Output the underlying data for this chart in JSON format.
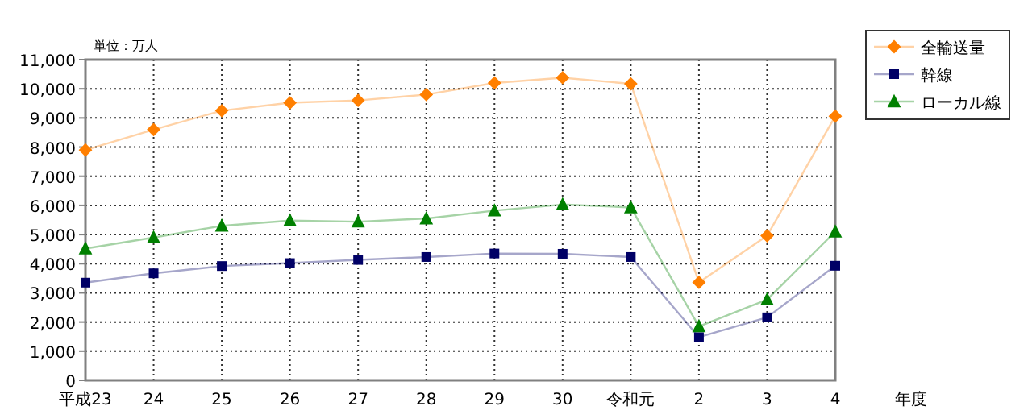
{
  "chart_data": {
    "type": "line",
    "categories": [
      "平成23",
      "24",
      "25",
      "26",
      "27",
      "28",
      "29",
      "30",
      "令和元",
      "2",
      "3",
      "4"
    ],
    "series": [
      {
        "name": "全輸送量",
        "color": "#ff7f00",
        "marker": "diamond",
        "values": [
          7900,
          8600,
          9250,
          9520,
          9600,
          9800,
          10200,
          10380,
          10170,
          3360,
          4960,
          9060
        ]
      },
      {
        "name": "幹線",
        "color": "#000066",
        "marker": "square",
        "values": [
          3350,
          3670,
          3920,
          4020,
          4130,
          4230,
          4350,
          4340,
          4230,
          1480,
          2160,
          3930
        ]
      },
      {
        "name": "ローカル線",
        "color": "#008000",
        "marker": "triangle",
        "values": [
          4520,
          4900,
          5300,
          5480,
          5440,
          5550,
          5820,
          6030,
          5930,
          1850,
          2770,
          5100
        ]
      }
    ],
    "ylim": [
      0,
      11000
    ],
    "yticks": [
      {
        "value": 0,
        "label": "0"
      },
      {
        "value": 1000,
        "label": "1,000"
      },
      {
        "value": 2000,
        "label": "2,000"
      },
      {
        "value": 3000,
        "label": "3,000"
      },
      {
        "value": 4000,
        "label": "4,000"
      },
      {
        "value": 5000,
        "label": "5,000"
      },
      {
        "value": 6000,
        "label": "6,000"
      },
      {
        "value": 7000,
        "label": "7,000"
      },
      {
        "value": 8000,
        "label": "8,000"
      },
      {
        "value": 9000,
        "label": "9,000"
      },
      {
        "value": 10000,
        "label": "10,000"
      },
      {
        "value": 11000,
        "label": "11,000"
      }
    ],
    "xlabel": "年度",
    "annotations": [
      "単位：万人"
    ],
    "grid": true,
    "legend": "top right",
    "line_style": "solid"
  }
}
